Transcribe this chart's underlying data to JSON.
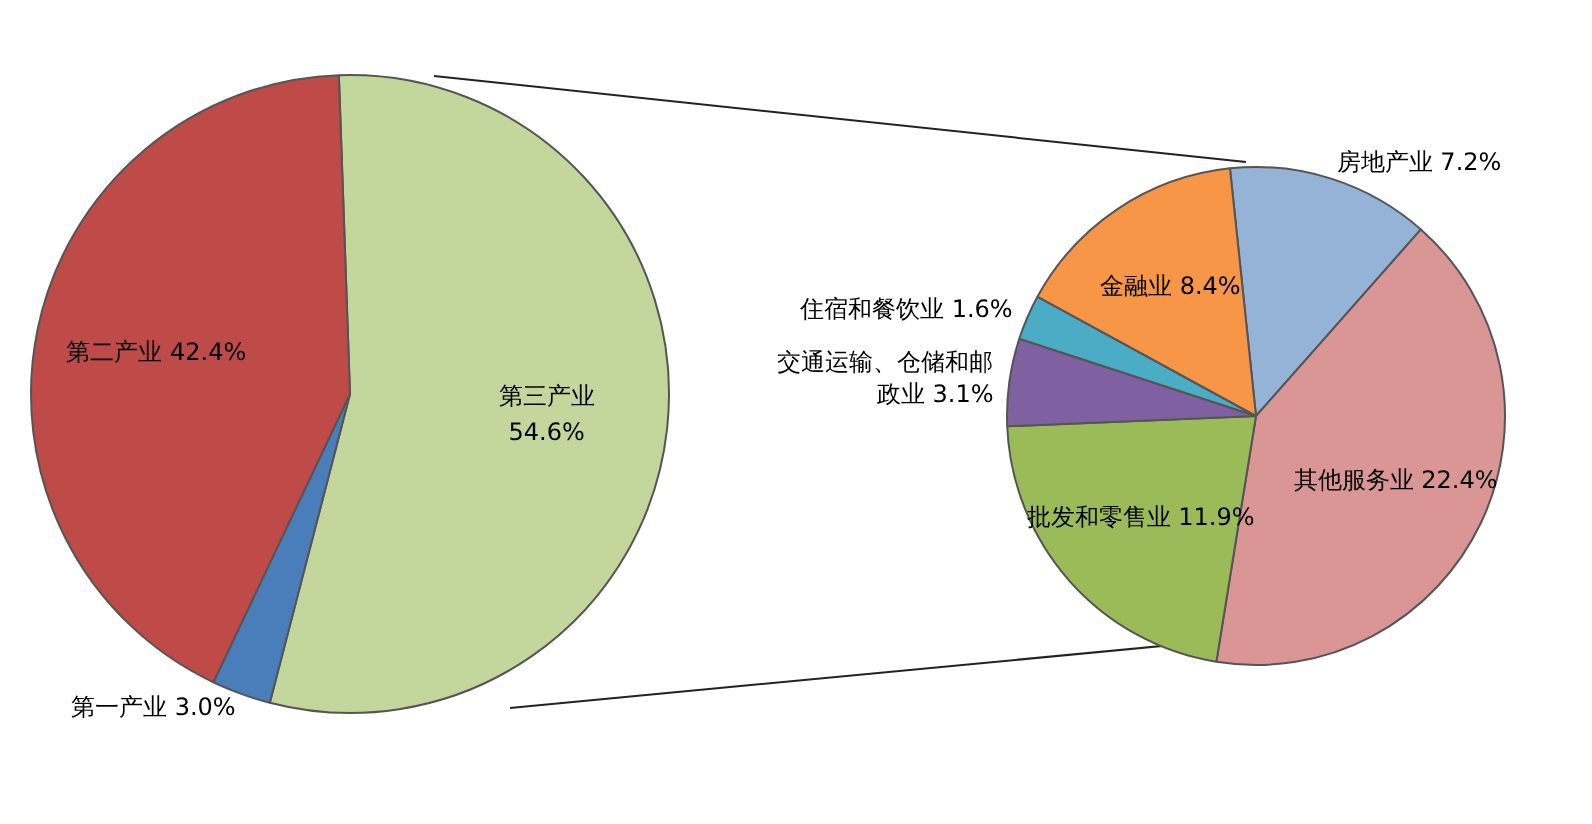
{
  "chart_data": [
    {
      "type": "pie",
      "categories": [
        "第三产业",
        "第一产业",
        "第二产业"
      ],
      "values": [
        54.6,
        3.0,
        42.4
      ],
      "value_labels": [
        "54.6%",
        "3.0%",
        "42.4%"
      ],
      "colors": [
        "#c3d69b",
        "#4a7ebb",
        "#be4b48"
      ]
    },
    {
      "type": "pie",
      "categories": [
        "房地产业",
        "其他服务业",
        "批发和零售业",
        "交通运输、仓储和邮政业",
        "住宿和餐饮业",
        "金融业"
      ],
      "values": [
        7.2,
        22.4,
        11.9,
        3.1,
        1.6,
        8.4
      ],
      "value_labels": [
        "7.2%",
        "22.4%",
        "11.9%",
        "3.1%",
        "1.6%",
        "8.4%"
      ],
      "colors": [
        "#95b3d7",
        "#d99694",
        "#9bbb59",
        "#7f60a0",
        "#4bacc6",
        "#f79646"
      ]
    }
  ]
}
